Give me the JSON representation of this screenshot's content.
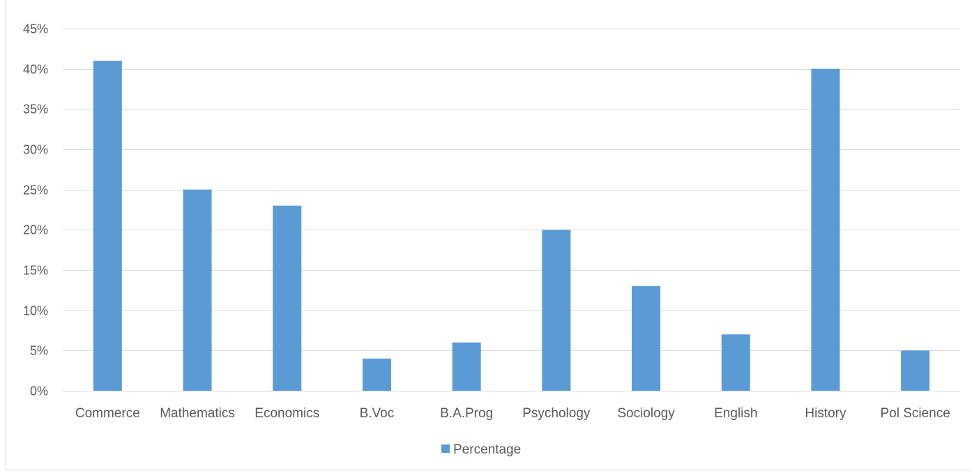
{
  "chart_data": {
    "type": "bar",
    "categories": [
      "Commerce",
      "Mathematics",
      "Economics",
      "B.Voc",
      "B.A.Prog",
      "Psychology",
      "Sociology",
      "English",
      "History",
      "Pol Science"
    ],
    "series": [
      {
        "name": "Percentage",
        "values": [
          41,
          25,
          23,
          4,
          6,
          20,
          13,
          7,
          40,
          5
        ]
      }
    ],
    "ylim": [
      0,
      45
    ],
    "ytick_step": 5,
    "ytick_labels": [
      "0%",
      "5%",
      "10%",
      "15%",
      "20%",
      "25%",
      "30%",
      "35%",
      "40%",
      "45%"
    ],
    "grid": true,
    "legend_position": "bottom",
    "colors": {
      "bar": "#5b9bd5",
      "grid": "#d9d9d9",
      "text": "#595959"
    }
  }
}
